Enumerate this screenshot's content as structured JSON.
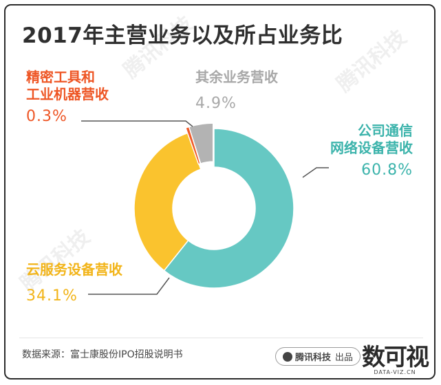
{
  "title": "2017年主营业务以及所占业务比",
  "chart_data": {
    "type": "pie",
    "donut": true,
    "title": "2017年主营业务以及所占业务比",
    "slices": [
      {
        "name": "公司通信网络设备营收",
        "value": 60.8,
        "label": "60.8%",
        "color": "#66c8c3"
      },
      {
        "name": "云服务设备营收",
        "value": 34.1,
        "label": "34.1%",
        "color": "#fac32e"
      },
      {
        "name": "精密工具和工业机器营收",
        "value": 0.3,
        "label": "0.3%",
        "color": "#f05a28"
      },
      {
        "name": "其余业务营收",
        "value": 4.9,
        "label": "4.9%",
        "color": "#b3b3b3"
      }
    ]
  },
  "labels": {
    "comm": {
      "line1": "公司通信",
      "line2": "网络设备营收",
      "pct": "60.8%"
    },
    "cloud": {
      "line1": "云服务设备营收",
      "pct": "34.1%"
    },
    "precision": {
      "line1": "精密工具和",
      "line2": "工业机器营收",
      "pct": "0.3%"
    },
    "other": {
      "line1": "其余业务营收",
      "pct": "4.9%"
    }
  },
  "watermark": "腾讯科技",
  "footer": {
    "source": "数据来源：富士康股份IPO招股说明书",
    "brand": "腾讯科技",
    "brand_suffix": "出品",
    "logo": "数可视",
    "logo_sub": "DATA-VIZ.CN"
  }
}
